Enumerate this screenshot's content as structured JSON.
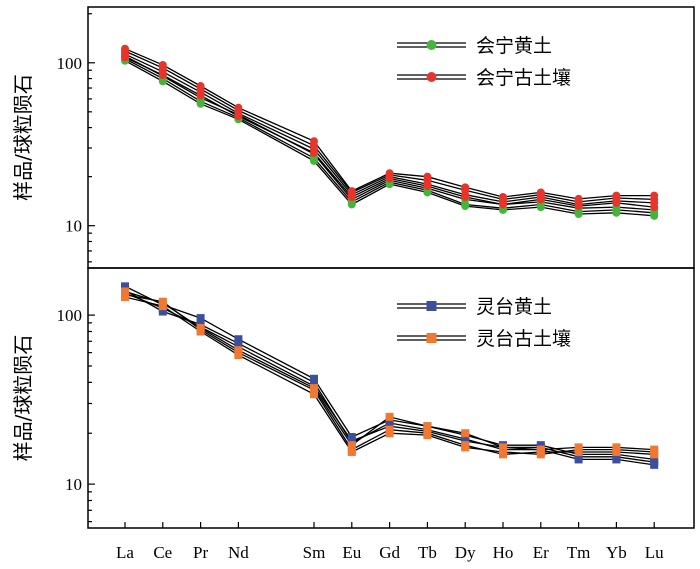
{
  "chart_data": [
    {
      "type": "line",
      "panel": "top",
      "yscale": "log",
      "ylabel": "样品/球粒陨石",
      "ylim": [
        5.5,
        220
      ],
      "yticks": [
        10,
        100
      ],
      "ytick_labels": [
        "10",
        "100"
      ],
      "categories": [
        "La",
        "Ce",
        "Pr",
        "Nd",
        "Sm",
        "Eu",
        "Gd",
        "Tb",
        "Dy",
        "Ho",
        "Er",
        "Tm",
        "Yb",
        "Lu"
      ],
      "x_positions": [
        0,
        1,
        2,
        3,
        5,
        6,
        7,
        8,
        9,
        10,
        11,
        12,
        13,
        14
      ],
      "legend": [
        {
          "label": "会宁黄土",
          "marker": "circle",
          "color": "#44b53a"
        },
        {
          "label": "会宁古土壤",
          "marker": "circle",
          "color": "#e8342a"
        }
      ],
      "series": [
        {
          "name": "会宁黄土",
          "marker": "circle",
          "color": "#44b53a",
          "values": [
            103,
            77,
            56,
            45,
            25,
            13.5,
            18,
            16,
            13.2,
            12.5,
            13,
            11.8,
            12,
            11.5
          ]
        },
        {
          "name": "会宁黄土",
          "marker": "circle",
          "color": "#44b53a",
          "values": [
            106,
            80,
            58,
            46,
            26,
            14,
            18.5,
            16.5,
            13.5,
            12.8,
            13.5,
            12.2,
            12.5,
            12
          ]
        },
        {
          "name": "会宁黄土",
          "marker": "circle",
          "color": "#44b53a",
          "values": [
            110,
            83,
            61,
            48,
            27.5,
            14.5,
            19,
            17,
            14.5,
            13.5,
            14,
            12.8,
            13,
            12.5
          ]
        },
        {
          "name": "会宁古土壤",
          "marker": "circle",
          "color": "#e8342a",
          "values": [
            108,
            84,
            63,
            47,
            28,
            15,
            19.5,
            17.5,
            15,
            13.5,
            14.5,
            13.2,
            13.8,
            13
          ]
        },
        {
          "name": "会宁古土壤",
          "marker": "circle",
          "color": "#e8342a",
          "values": [
            113,
            88,
            66,
            49,
            29.5,
            15.5,
            20,
            18,
            15.5,
            14,
            15,
            13.5,
            14.2,
            13.8
          ]
        },
        {
          "name": "会宁古土壤",
          "marker": "circle",
          "color": "#e8342a",
          "values": [
            118,
            93,
            69,
            51,
            31,
            16,
            20.5,
            19,
            16.5,
            14.5,
            15.5,
            14,
            14.8,
            14.5
          ]
        },
        {
          "name": "会宁古土壤",
          "marker": "circle",
          "color": "#e8342a",
          "values": [
            122,
            97,
            72,
            53,
            33,
            16.3,
            21,
            20,
            17.2,
            15,
            16,
            14.6,
            15.3,
            15.3
          ]
        }
      ]
    },
    {
      "type": "line",
      "panel": "bottom",
      "yscale": "log",
      "ylabel": "样品/球粒陨石",
      "ylim": [
        5.5,
        190
      ],
      "yticks": [
        10,
        100
      ],
      "ytick_labels": [
        "10",
        "100"
      ],
      "categories": [
        "La",
        "Ce",
        "Pr",
        "Nd",
        "Sm",
        "Eu",
        "Gd",
        "Tb",
        "Dy",
        "Ho",
        "Er",
        "Tm",
        "Yb",
        "Lu"
      ],
      "x_positions": [
        0,
        1,
        2,
        3,
        5,
        6,
        7,
        8,
        9,
        10,
        11,
        12,
        13,
        14
      ],
      "legend": [
        {
          "label": "灵台黄土",
          "marker": "square",
          "color": "#3b4f9e"
        },
        {
          "label": "灵台古土壤",
          "marker": "square",
          "color": "#f07830"
        }
      ],
      "series": [
        {
          "name": "灵台黄土",
          "marker": "square",
          "color": "#3b4f9e",
          "values": [
            148,
            115,
            96,
            72,
            42,
            19,
            24,
            22,
            19.5,
            17,
            17,
            15,
            15,
            14
          ]
        },
        {
          "name": "灵台黄土",
          "marker": "square",
          "color": "#3b4f9e",
          "values": [
            140,
            105,
            88,
            68,
            40,
            17.5,
            23,
            21,
            18.5,
            16,
            16,
            14,
            14,
            13
          ]
        },
        {
          "name": "灵台黄土",
          "marker": "square",
          "color": "#3b4f9e",
          "values": [
            135,
            110,
            85,
            65,
            38,
            18,
            22,
            20.5,
            18,
            16.5,
            16.5,
            14.5,
            14.5,
            13.5
          ]
        },
        {
          "name": "灵台古土壤",
          "marker": "square",
          "color": "#f07830",
          "values": [
            132,
            120,
            82,
            60,
            36,
            16,
            21,
            20,
            17,
            15,
            15.5,
            15.5,
            15.5,
            15
          ]
        },
        {
          "name": "灵台古土壤",
          "marker": "square",
          "color": "#f07830",
          "values": [
            128,
            113,
            80,
            58,
            34,
            15.5,
            20,
            19.5,
            16.5,
            15.5,
            15,
            16,
            16,
            15.5
          ]
        },
        {
          "name": "灵台古土壤",
          "marker": "square",
          "color": "#f07830",
          "values": [
            138,
            118,
            84,
            62,
            37,
            17,
            25,
            22,
            20,
            16.5,
            16,
            16.5,
            16.5,
            16
          ]
        }
      ]
    }
  ]
}
